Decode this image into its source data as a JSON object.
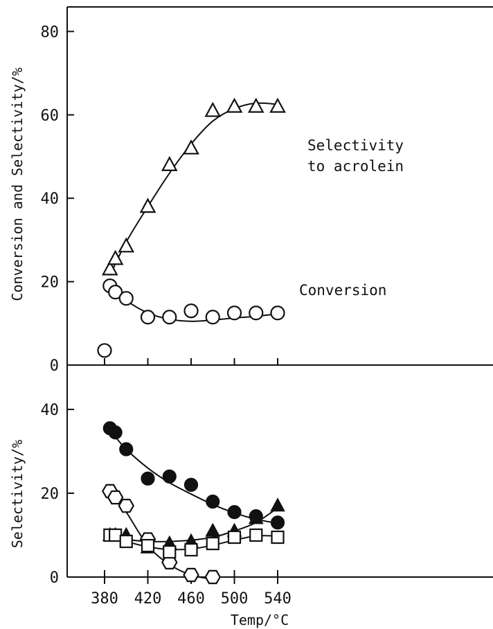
{
  "chart_data": [
    {
      "type": "scatter",
      "panel": "top",
      "ylabel": "Conversion and Selectivity/%",
      "ylim": [
        0,
        80
      ],
      "yticks": [
        "0",
        "20",
        "40",
        "60",
        "80"
      ],
      "xlim": [
        360,
        560
      ],
      "series": [
        {
          "marker": "open-triangle",
          "annotation": [
            "Selectivity",
            "to acrolein"
          ],
          "x": [
            385,
            390,
            400,
            420,
            440,
            460,
            480,
            500,
            520,
            540
          ],
          "y": [
            23,
            25.5,
            28.5,
            38,
            48,
            52,
            61,
            62,
            62,
            62
          ],
          "curve": {
            "x": [
              385,
              400,
              420,
              440,
              460,
              480,
              500,
              520,
              540
            ],
            "y": [
              21.5,
              29.5,
              38,
              46,
              53,
              58.5,
              61.5,
              62.8,
              62.5
            ]
          }
        },
        {
          "marker": "open-circle",
          "annotation": [
            "Conversion"
          ],
          "x": [
            380,
            385,
            390,
            400,
            420,
            440,
            460,
            480,
            500,
            520,
            540
          ],
          "y": [
            3.5,
            19,
            17.5,
            16,
            11.5,
            11.5,
            13,
            11.5,
            12.5,
            12.5,
            12.5
          ],
          "curve": {
            "x": [
              385,
              400,
              420,
              440,
              460,
              480,
              500,
              520,
              540
            ],
            "y": [
              19,
              15.5,
              12.5,
              11,
              10.5,
              10.8,
              11.3,
              11.7,
              12.3
            ]
          }
        }
      ]
    },
    {
      "type": "scatter",
      "panel": "bottom",
      "xlabel": "Temp/°C",
      "ylabel": "Selectivity/%",
      "ylim": [
        0,
        50
      ],
      "yticks": [
        "0",
        "20",
        "40"
      ],
      "xlim": [
        360,
        560
      ],
      "xticks": [
        "380",
        "420",
        "460",
        "500",
        "540"
      ],
      "series": [
        {
          "marker": "filled-circle",
          "x": [
            385,
            390,
            400,
            420,
            440,
            460,
            480,
            500,
            520,
            540
          ],
          "y": [
            35.5,
            34.5,
            30.5,
            23.5,
            24,
            22,
            18,
            15.5,
            14.5,
            13
          ],
          "curve": {
            "x": [
              385,
              400,
              420,
              440,
              460,
              480,
              500,
              520,
              540
            ],
            "y": [
              35,
              30.5,
              26,
              22.5,
              19.8,
              17.3,
              15.3,
              13.8,
              12.8
            ]
          }
        },
        {
          "marker": "open-hexagon",
          "x": [
            385,
            390,
            400,
            420,
            440,
            460,
            480
          ],
          "y": [
            20.5,
            19,
            17,
            9,
            3.5,
            0.5,
            0
          ],
          "curve": {
            "x": [
              390,
              400,
              420,
              440,
              460,
              480
            ],
            "y": [
              18.5,
              15.5,
              7.5,
              3,
              0.5,
              -0.5
            ]
          }
        },
        {
          "marker": "filled-triangle",
          "x": [
            385,
            390,
            400,
            420,
            440,
            460,
            480,
            500,
            520,
            540
          ],
          "y": [
            10,
            10,
            10,
            7,
            8,
            8.5,
            11,
            11,
            14,
            17
          ],
          "curve": {
            "x": [
              385,
              400,
              420,
              440,
              460,
              480,
              500,
              520,
              540
            ],
            "y": [
              10,
              9,
              8.5,
              8.5,
              8.8,
              9.5,
              11,
              13,
              16.5
            ]
          }
        },
        {
          "marker": "open-square",
          "x": [
            385,
            390,
            400,
            420,
            440,
            460,
            480,
            500,
            520,
            540
          ],
          "y": [
            10,
            10,
            8.5,
            7.5,
            6,
            6.5,
            8,
            9.5,
            10,
            9.5
          ],
          "curve": {
            "x": [
              385,
              400,
              420,
              440,
              460,
              480,
              500,
              520,
              540
            ],
            "y": [
              9.8,
              8.5,
              7.2,
              6.6,
              6.7,
              7.6,
              8.8,
              9.8,
              9.8
            ]
          }
        }
      ]
    }
  ]
}
